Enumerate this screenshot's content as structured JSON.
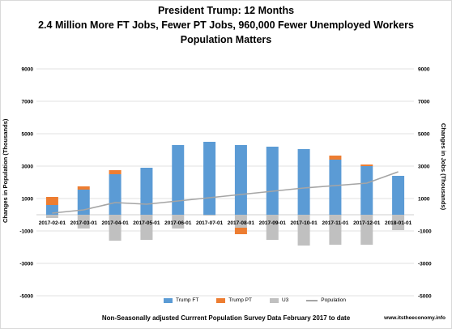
{
  "title_lines": [
    "President Trump: 12 Months",
    "2.4 Million More FT Jobs, Fewer PT Jobs, 960,000 Fewer Unemployed Workers",
    "Population Matters"
  ],
  "footer": "Non-Seasonally adjusted Currrent Population Survey Data February 2017 to date",
  "credit": "www.itstheeconomy.info",
  "colors": {
    "trump_ft": "#5b9bd5",
    "trump_pt": "#ed7d31",
    "u3": "#c0c0c0",
    "population": "#a5a5a5",
    "grid": "#d9d9d9"
  },
  "chart_data": {
    "type": "bar",
    "stacked": true,
    "xlabel": "",
    "ylabel_left": "Changes in Population (Thousands)",
    "ylabel_right": "Changes in Jobs (Thousands)",
    "ylim": [
      -5000,
      9000
    ],
    "yticks": [
      9000,
      7000,
      5000,
      3000,
      1000,
      -1000,
      -3000,
      -5000
    ],
    "grid": true,
    "legend_position": "bottom",
    "categories": [
      "2017-02-01",
      "2017-03-01",
      "2017-04-01",
      "2017-05-01",
      "2017-06-01",
      "2017-07-01",
      "2017-08-01",
      "2017-09-01",
      "2017-10-01",
      "2017-11-01",
      "2017-12-01",
      "2018-01-01"
    ],
    "series": [
      {
        "name": "Trump FT",
        "kind": "bar",
        "values": [
          600,
          1550,
          2500,
          2900,
          4300,
          4500,
          4300,
          4200,
          4050,
          3400,
          3000,
          2400
        ]
      },
      {
        "name": "Trump PT",
        "kind": "bar",
        "values": [
          500,
          200,
          250,
          0,
          0,
          0,
          -400,
          0,
          0,
          250,
          100,
          0
        ]
      },
      {
        "name": "U3",
        "kind": "bar",
        "values": [
          -200,
          -850,
          -1600,
          -1550,
          -850,
          -50,
          -800,
          -1550,
          -1900,
          -1850,
          -1850,
          -950
        ]
      },
      {
        "name": "Population",
        "kind": "line",
        "values": [
          100,
          300,
          750,
          650,
          850,
          1050,
          1250,
          1450,
          1650,
          1800,
          1950,
          2650
        ]
      }
    ]
  }
}
